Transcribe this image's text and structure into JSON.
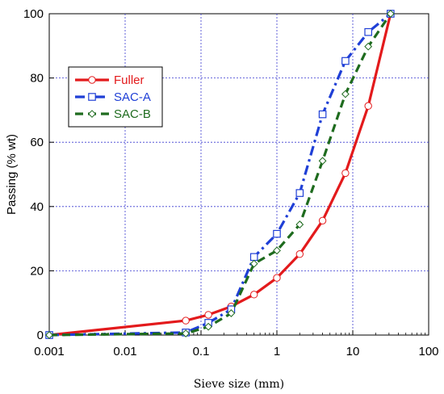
{
  "chart_data": {
    "type": "line",
    "xlabel": "Sieve size (mm)",
    "ylabel": "Passing (% wt)",
    "x_scale": "log",
    "xlim": [
      0.001,
      100
    ],
    "ylim": [
      0,
      100
    ],
    "x_ticks": [
      "0.001",
      "0.01",
      "0.1",
      "1",
      "10",
      "100"
    ],
    "y_ticks": [
      "0",
      "20",
      "40",
      "60",
      "80",
      "100"
    ],
    "grid": true,
    "legend_position": "upper-left",
    "series": [
      {
        "name": "Fuller",
        "color": "#e31a1c",
        "dash": "solid",
        "marker": "circle",
        "x": [
          0.001,
          0.063,
          0.125,
          0.25,
          0.5,
          1,
          2,
          4,
          8,
          16,
          31.5
        ],
        "y": [
          0,
          4.5,
          6.3,
          8.9,
          12.6,
          17.8,
          25.2,
          35.6,
          50.4,
          71.3,
          100
        ]
      },
      {
        "name": "SAC-A",
        "color": "#1f3fd6",
        "dash": "dashdot",
        "marker": "square",
        "x": [
          0.001,
          0.063,
          0.125,
          0.25,
          0.5,
          1,
          2,
          4,
          8,
          16,
          31.5
        ],
        "y": [
          0,
          0.8,
          3.8,
          8.0,
          24.3,
          31.5,
          44.2,
          68.7,
          85.3,
          94.3,
          100
        ]
      },
      {
        "name": "SAC-B",
        "color": "#1e6b1e",
        "dash": "dash",
        "marker": "diamond",
        "x": [
          0.001,
          0.063,
          0.125,
          0.25,
          0.5,
          1,
          2,
          4,
          8,
          16,
          31.5
        ],
        "y": [
          0,
          0.5,
          2.6,
          6.8,
          22.2,
          26.3,
          34.4,
          54.2,
          75.0,
          89.8,
          100
        ]
      }
    ]
  }
}
